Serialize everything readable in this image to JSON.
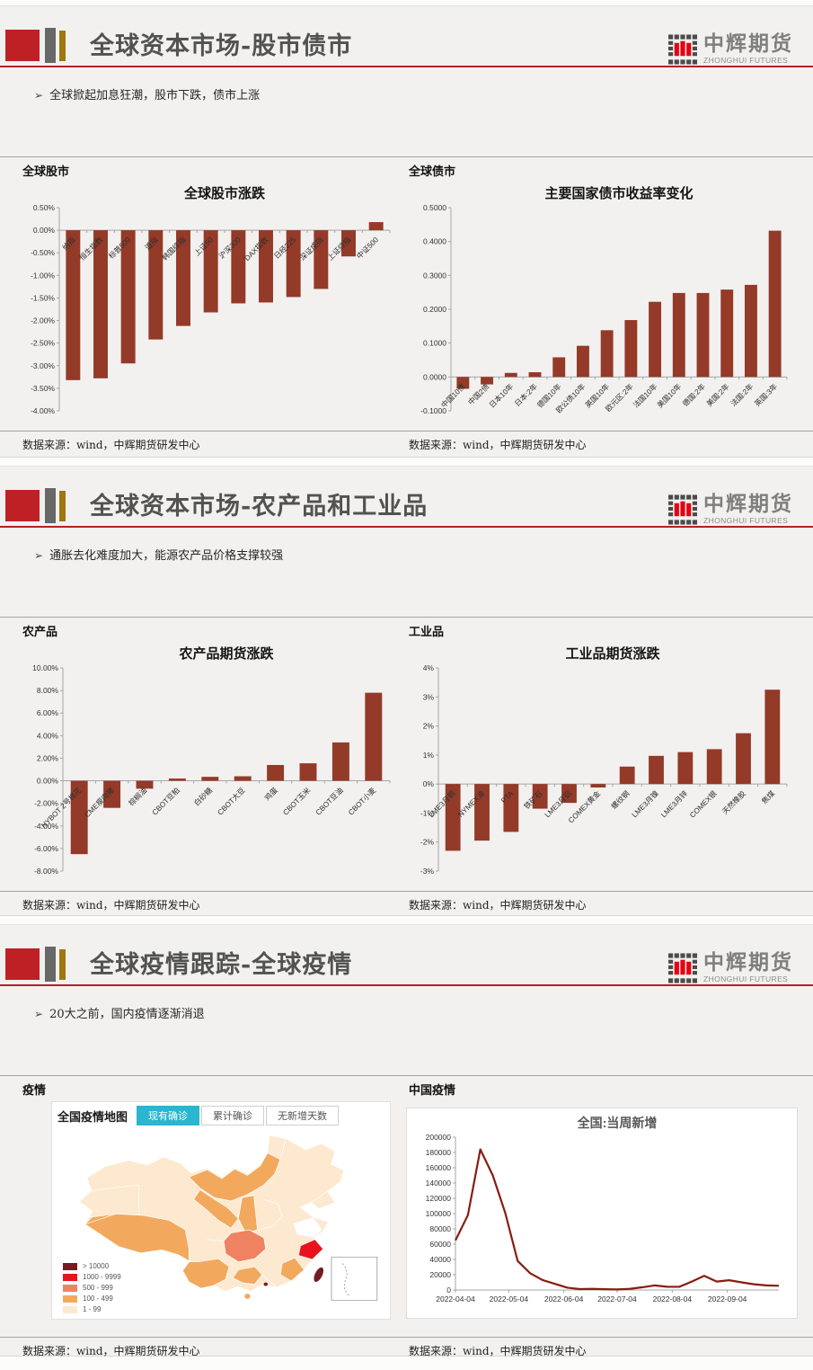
{
  "brand": {
    "logo_text_cn": "中辉期货",
    "logo_text_en": "ZHONGHUI FUTURES",
    "logo_red": "#e60012",
    "logo_gray": "#4b4b4b",
    "accent_red": "#b32025",
    "deco_gold": "#a2760e"
  },
  "footer_text": "数据来源：wind，中辉期货研发中心",
  "slides": [
    {
      "title": "全球资本市场-股市债市",
      "bullet": "全球掀起加息狂潮，股市下跌，债市上涨",
      "left_label": "全球股市",
      "right_label": "全球债市"
    },
    {
      "title": "全球资本市场-农产品和工业品",
      "bullet": "通胀去化难度加大，能源农产品价格支撑较强",
      "left_label": "农产品",
      "right_label": "工业品"
    },
    {
      "title": "全球疫情跟踪-全球疫情",
      "bullet": "20大之前，国内疫情逐渐消退",
      "left_label": "疫情",
      "right_label": "中国疫情"
    }
  ],
  "map": {
    "title": "全国疫情地图",
    "active_tab_color": "#2ab5d0",
    "tabs": [
      {
        "label": "现有确诊",
        "active": true
      },
      {
        "label": "累计确诊",
        "active": false
      },
      {
        "label": "无新增天数",
        "active": false
      }
    ],
    "legend": [
      {
        "label": "> 10000",
        "color": "#731c21"
      },
      {
        "label": "1000 - 9999",
        "color": "#e8131d"
      },
      {
        "label": "500 - 999",
        "color": "#ef8261"
      },
      {
        "label": "100 - 499",
        "color": "#f2a95e"
      },
      {
        "label": "1 - 99",
        "color": "#fde9cf"
      }
    ]
  },
  "chart_data": [
    {
      "type": "bar",
      "title": "全球股市涨跌",
      "ml": 46,
      "color": "#943a28",
      "categories": [
        "纳指",
        "恒生指数",
        "标普500",
        "道指",
        "韩国综指",
        "上证50",
        "沪深300",
        "DAX指数",
        "日经225",
        "深证成指",
        "上证综指",
        "中证500"
      ],
      "values": [
        -3.32,
        -3.28,
        -2.95,
        -2.42,
        -2.12,
        -1.82,
        -1.62,
        -1.6,
        -1.48,
        -1.3,
        -0.58,
        0.18
      ],
      "ylim": [
        -4,
        0.5
      ],
      "y_ticks": [
        "0.50%",
        "0.00%",
        "-0.50%",
        "-1.00%",
        "-1.50%",
        "-2.00%",
        "-2.50%",
        "-3.00%",
        "-3.50%",
        "-4.00%"
      ],
      "y_tick_values": [
        0.5,
        0,
        -0.5,
        -1,
        -1.5,
        -2,
        -2.5,
        -3,
        -3.5,
        -4
      ]
    },
    {
      "type": "bar",
      "title": "主要国家债市收益率变化",
      "ml": 50,
      "color": "#943a28",
      "categories": [
        "中国10债",
        "中国2债",
        "日本10年",
        "日本:2年",
        "德国10年",
        "欧公债10年",
        "英国10年",
        "欧元区:2年",
        "法国10年",
        "美国10年",
        "德国:2年",
        "美国:2年",
        "法国:2年",
        "英国:3年"
      ],
      "values": [
        -0.035,
        -0.022,
        0.012,
        0.014,
        0.058,
        0.092,
        0.138,
        0.168,
        0.222,
        0.248,
        0.248,
        0.258,
        0.272,
        0.432
      ],
      "ylim": [
        -0.1,
        0.5
      ],
      "y_ticks": [
        "0.5000",
        "0.4000",
        "0.3000",
        "0.2000",
        "0.1000",
        "0.0000",
        "-0.1000"
      ],
      "y_tick_values": [
        0.5,
        0.4,
        0.3,
        0.2,
        0.1,
        0,
        -0.1
      ]
    },
    {
      "type": "bar",
      "title": "农产品期货涨跌",
      "ml": 50,
      "color": "#943a28",
      "categories": [
        "NYBOT 2号棉花",
        "CME瘦肉猪",
        "棕榈油",
        "CBOT豆粕",
        "白砂糖",
        "CBOT大豆",
        "鸡蛋",
        "CBOT玉米",
        "CBOT豆油",
        "CBOT小麦"
      ],
      "values": [
        -6.5,
        -2.4,
        -0.7,
        0.2,
        0.35,
        0.4,
        1.4,
        1.55,
        3.4,
        7.8
      ],
      "ylim": [
        -8,
        10
      ],
      "y_ticks": [
        "10.00%",
        "8.00%",
        "6.00%",
        "4.00%",
        "2.00%",
        "0.00%",
        "-2.00%",
        "-4.00%",
        "-6.00%",
        "-8.00%"
      ],
      "y_tick_values": [
        10,
        8,
        6,
        4,
        2,
        0,
        -2,
        -4,
        -6,
        -8
      ]
    },
    {
      "type": "bar",
      "title": "工业品期货涨跌",
      "ml": 36,
      "color": "#943a28",
      "categories": [
        "LME3月铜",
        "NYMEX油",
        "PTA",
        "铁矿石",
        "LME3月铝",
        "COMEX黄金",
        "螺纹钢",
        "LME3月镍",
        "LME3月锌",
        "COMEX银",
        "天然橡胶",
        "焦煤"
      ],
      "values": [
        -2.3,
        -1.95,
        -1.65,
        -0.85,
        -0.65,
        -0.12,
        0.6,
        0.97,
        1.1,
        1.2,
        1.75,
        3.25
      ],
      "ylim": [
        -3,
        4
      ],
      "y_ticks": [
        "4%",
        "3%",
        "2%",
        "1%",
        "0%",
        "-1%",
        "-2%",
        "-3%"
      ],
      "y_tick_values": [
        4,
        3,
        2,
        1,
        0,
        -1,
        -2,
        -3
      ]
    },
    {
      "type": "line",
      "title": "全国:当周新增",
      "ml": 50,
      "color": "#881c12",
      "values": [
        65000,
        98000,
        184000,
        150000,
        101000,
        38000,
        22000,
        13000,
        8000,
        3000,
        1200,
        1500,
        1000,
        700,
        1500,
        3500,
        6000,
        4300,
        4200,
        11000,
        18500,
        11000,
        12800,
        10000,
        7500,
        6000,
        5500
      ],
      "ylim": [
        0,
        200000
      ],
      "y_ticks": [
        "200000",
        "180000",
        "160000",
        "140000",
        "120000",
        "100000",
        "80000",
        "60000",
        "40000",
        "20000",
        "0"
      ],
      "y_tick_values": [
        200000,
        180000,
        160000,
        140000,
        120000,
        100000,
        80000,
        60000,
        40000,
        20000,
        0
      ],
      "x_ticks": [
        "2022-04-04",
        "2022-05-04",
        "2022-06-04",
        "2022-07-04",
        "2022-08-04",
        "2022-09-04"
      ],
      "x_tick_weeks": [
        0,
        4.29,
        8.71,
        13,
        17.43,
        21.86
      ]
    }
  ]
}
